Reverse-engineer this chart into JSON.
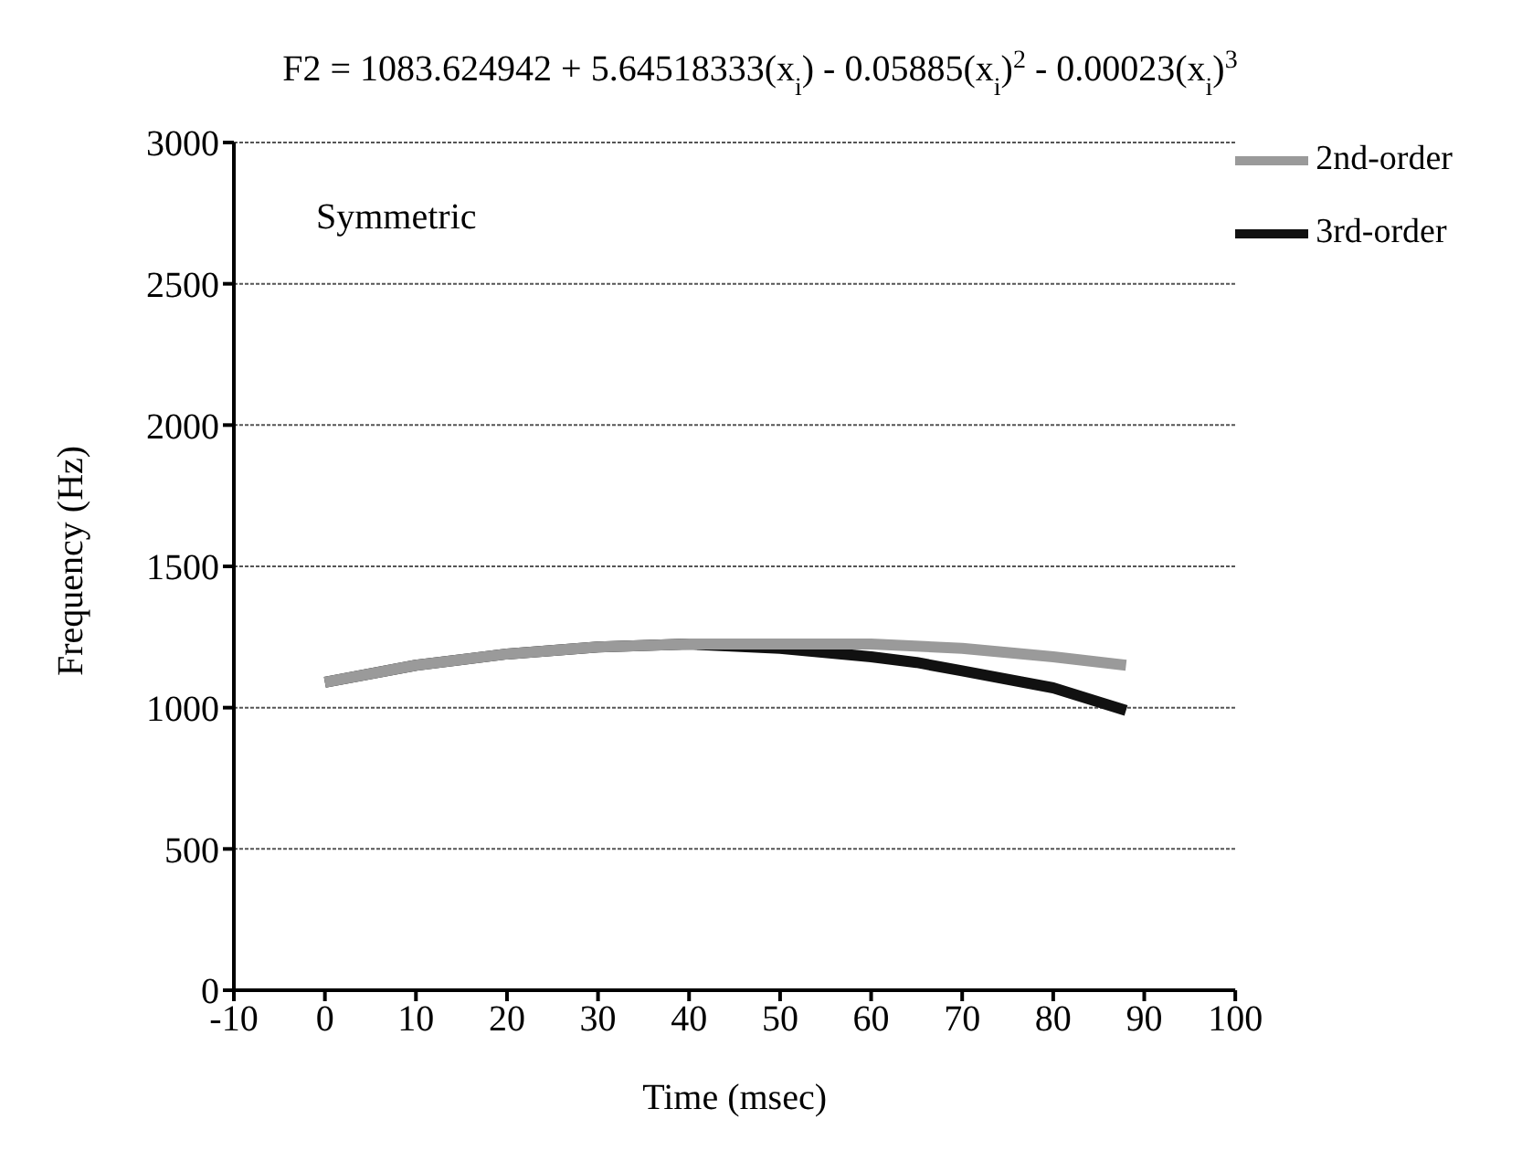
{
  "chart_data": {
    "type": "line",
    "title": "F2 = 1083.624942 + 5.64518333(x$_{i}$) - 0.05885(x$_{i}$)$^{2}$ - 0.00023(x$_{i}$)$^{3}$",
    "xlabel": "Time (msec)",
    "ylabel": "Frequency (Hz)",
    "annotations": [
      "Symmetric"
    ],
    "series": [
      {
        "name": "3rd-order",
        "color": "#111111",
        "x": [
          0,
          10,
          20,
          30,
          40,
          50,
          60,
          65,
          70,
          80,
          88
        ],
        "values": [
          1090,
          1150,
          1190,
          1215,
          1225,
          1210,
          1180,
          1160,
          1130,
          1070,
          990
        ]
      },
      {
        "name": "2nd-order",
        "color": "#9a9a9a",
        "x": [
          0,
          10,
          20,
          30,
          40,
          50,
          60,
          70,
          80,
          88
        ],
        "values": [
          1090,
          1150,
          1190,
          1215,
          1225,
          1225,
          1225,
          1210,
          1180,
          1150
        ]
      }
    ],
    "xlim": [
      -10,
      100
    ],
    "xticks": [
      -10,
      0,
      10,
      20,
      30,
      40,
      50,
      60,
      70,
      80,
      90,
      100
    ],
    "ylim": [
      0,
      3000
    ],
    "yticks": [
      0,
      500,
      1000,
      1500,
      2000,
      2500,
      3000
    ],
    "grid": "y",
    "legend": "top right",
    "marker": "none",
    "line_style": "solid"
  }
}
